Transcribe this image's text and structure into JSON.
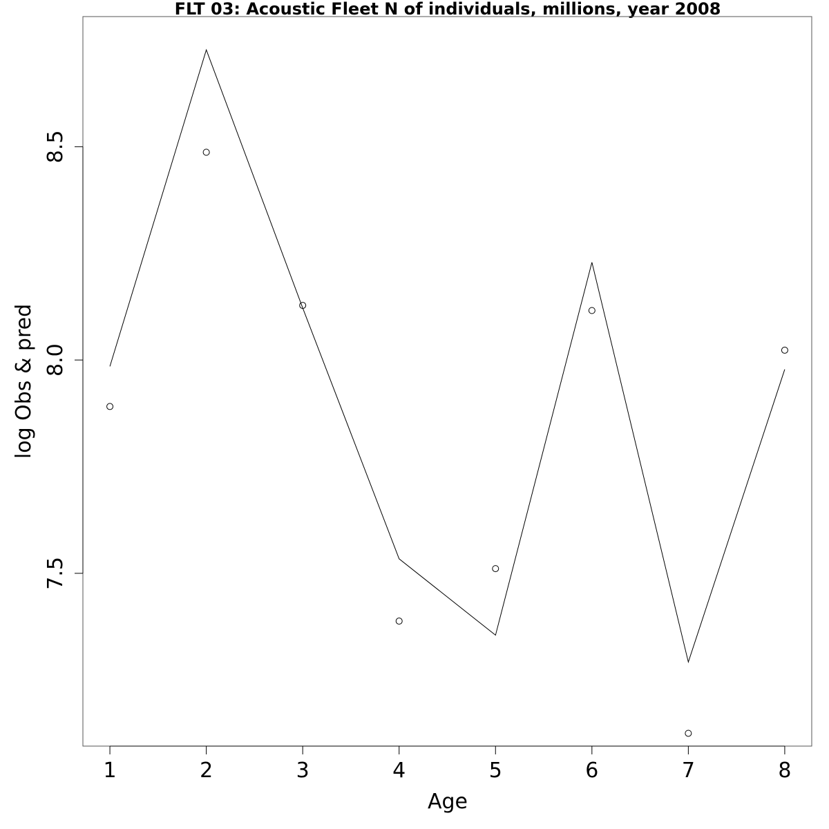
{
  "chart_data": {
    "type": "line",
    "title": "FLT 03: Acoustic Fleet  N of individuals, millions, year 2008",
    "xlabel": "Age",
    "ylabel": "log Obs & pred",
    "x": [
      1,
      2,
      3,
      4,
      5,
      6,
      7,
      8
    ],
    "xlim": [
      0.72,
      8.28
    ],
    "ylim": [
      7.095,
      8.805
    ],
    "xticks": [
      "1",
      "2",
      "3",
      "4",
      "5",
      "6",
      "7",
      "8"
    ],
    "yticks": [
      "7.5",
      "8.0",
      "8.5"
    ],
    "ytick_values": [
      7.5,
      8.0,
      8.5
    ],
    "grid": false,
    "series": [
      {
        "style": "line",
        "values": [
          7.985,
          8.727,
          8.122,
          7.534,
          7.355,
          8.229,
          7.292,
          7.978
        ]
      },
      {
        "style": "points",
        "values": [
          7.891,
          8.487,
          8.128,
          7.388,
          7.511,
          8.116,
          7.125,
          8.023
        ]
      }
    ],
    "colors": {
      "line": "#000000",
      "points": "#000000",
      "frame": "#555555"
    }
  }
}
